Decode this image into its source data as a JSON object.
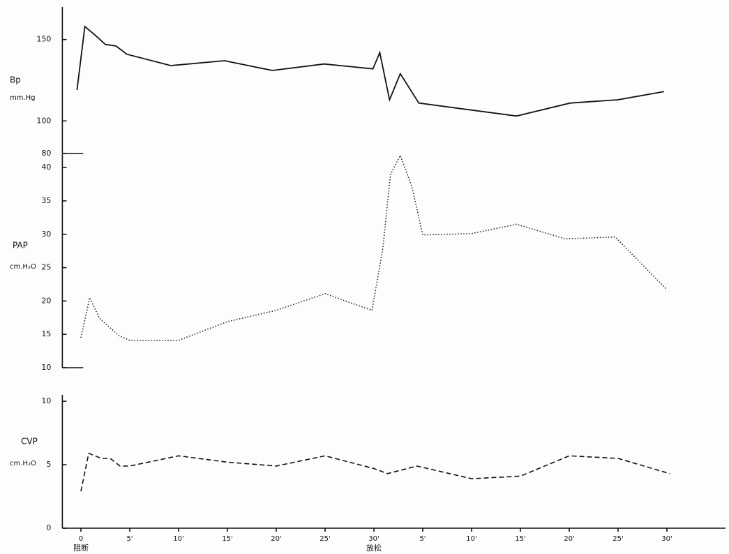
{
  "chart_data": [
    {
      "type": "line",
      "ylabel": "Bp",
      "yunit": "mm.Hg",
      "ylim": [
        80,
        170
      ],
      "yticks": [
        80,
        100,
        150
      ],
      "xlim": [
        -1.9,
        66
      ],
      "x": [
        -0.4,
        0.4,
        1.4,
        2.5,
        3.6,
        4.7,
        9.2,
        14.7,
        19.6,
        24.9,
        29.9,
        30.6,
        31.6,
        32.7,
        34.6,
        44.6,
        50.1,
        55,
        59.7
      ],
      "series": [
        {
          "color": "#111111",
          "line_style": "solid",
          "values": [
            119,
            158,
            153,
            147,
            146,
            141,
            134,
            137,
            131,
            135,
            132,
            142,
            113,
            129,
            111,
            103,
            111,
            113,
            118
          ]
        }
      ]
    },
    {
      "type": "line",
      "ylabel": "PAP",
      "yunit": "cm.H₂O",
      "ylim": [
        10,
        42
      ],
      "yticks": [
        10,
        15,
        20,
        25,
        30,
        35,
        40
      ],
      "xlim": [
        -1.9,
        66
      ],
      "x": [
        0,
        0.9,
        1.9,
        3.9,
        5,
        10,
        15,
        20,
        25,
        29.8,
        30.9,
        31.7,
        32.7,
        33.9,
        35,
        40,
        44.6,
        49.6,
        54.7,
        60
      ],
      "series": [
        {
          "color": "#222222",
          "line_style": "dotted",
          "values": [
            14.5,
            20.5,
            17.4,
            14.8,
            14.1,
            14.1,
            16.9,
            18.6,
            21.1,
            18.6,
            27.7,
            39,
            41.8,
            37.1,
            29.9,
            30.1,
            31.5,
            29.3,
            29.6,
            21.7
          ]
        }
      ]
    },
    {
      "type": "line",
      "ylabel": "CVP",
      "yunit": "cm.H₂O",
      "ylim": [
        0,
        10.5
      ],
      "yticks": [
        0,
        5,
        10
      ],
      "xlim": [
        -1.9,
        66
      ],
      "xticks": [
        0,
        {
          "value": 5,
          "label": "5'"
        },
        {
          "value": 10,
          "label": "10'"
        },
        {
          "value": 15,
          "label": "15'"
        },
        {
          "value": 20,
          "label": "20'"
        },
        {
          "value": 25,
          "label": "25'"
        },
        {
          "value": 30,
          "label": "30'"
        },
        {
          "value": 35,
          "label": "5'"
        },
        {
          "value": 40,
          "label": "10'"
        },
        {
          "value": 45,
          "label": "15'"
        },
        {
          "value": 50,
          "label": "20'"
        },
        {
          "value": 55,
          "label": "25'"
        },
        {
          "value": 60,
          "label": "30'"
        }
      ],
      "x_annotations": [
        {
          "x": 0,
          "text": "阻断"
        },
        {
          "x": 30,
          "text": "放松"
        }
      ],
      "x": [
        0,
        0.8,
        2.1,
        3,
        4,
        5,
        10,
        15,
        20,
        25,
        30,
        31.4,
        34.4,
        40,
        45,
        50,
        55,
        60.3
      ],
      "series": [
        {
          "color": "#111111",
          "line_style": "dashed",
          "values": [
            2.9,
            5.9,
            5.5,
            5.5,
            4.9,
            4.9,
            5.7,
            5.2,
            4.9,
            5.7,
            4.7,
            4.3,
            4.9,
            3.9,
            4.1,
            5.7,
            5.5,
            4.3
          ]
        }
      ]
    }
  ]
}
